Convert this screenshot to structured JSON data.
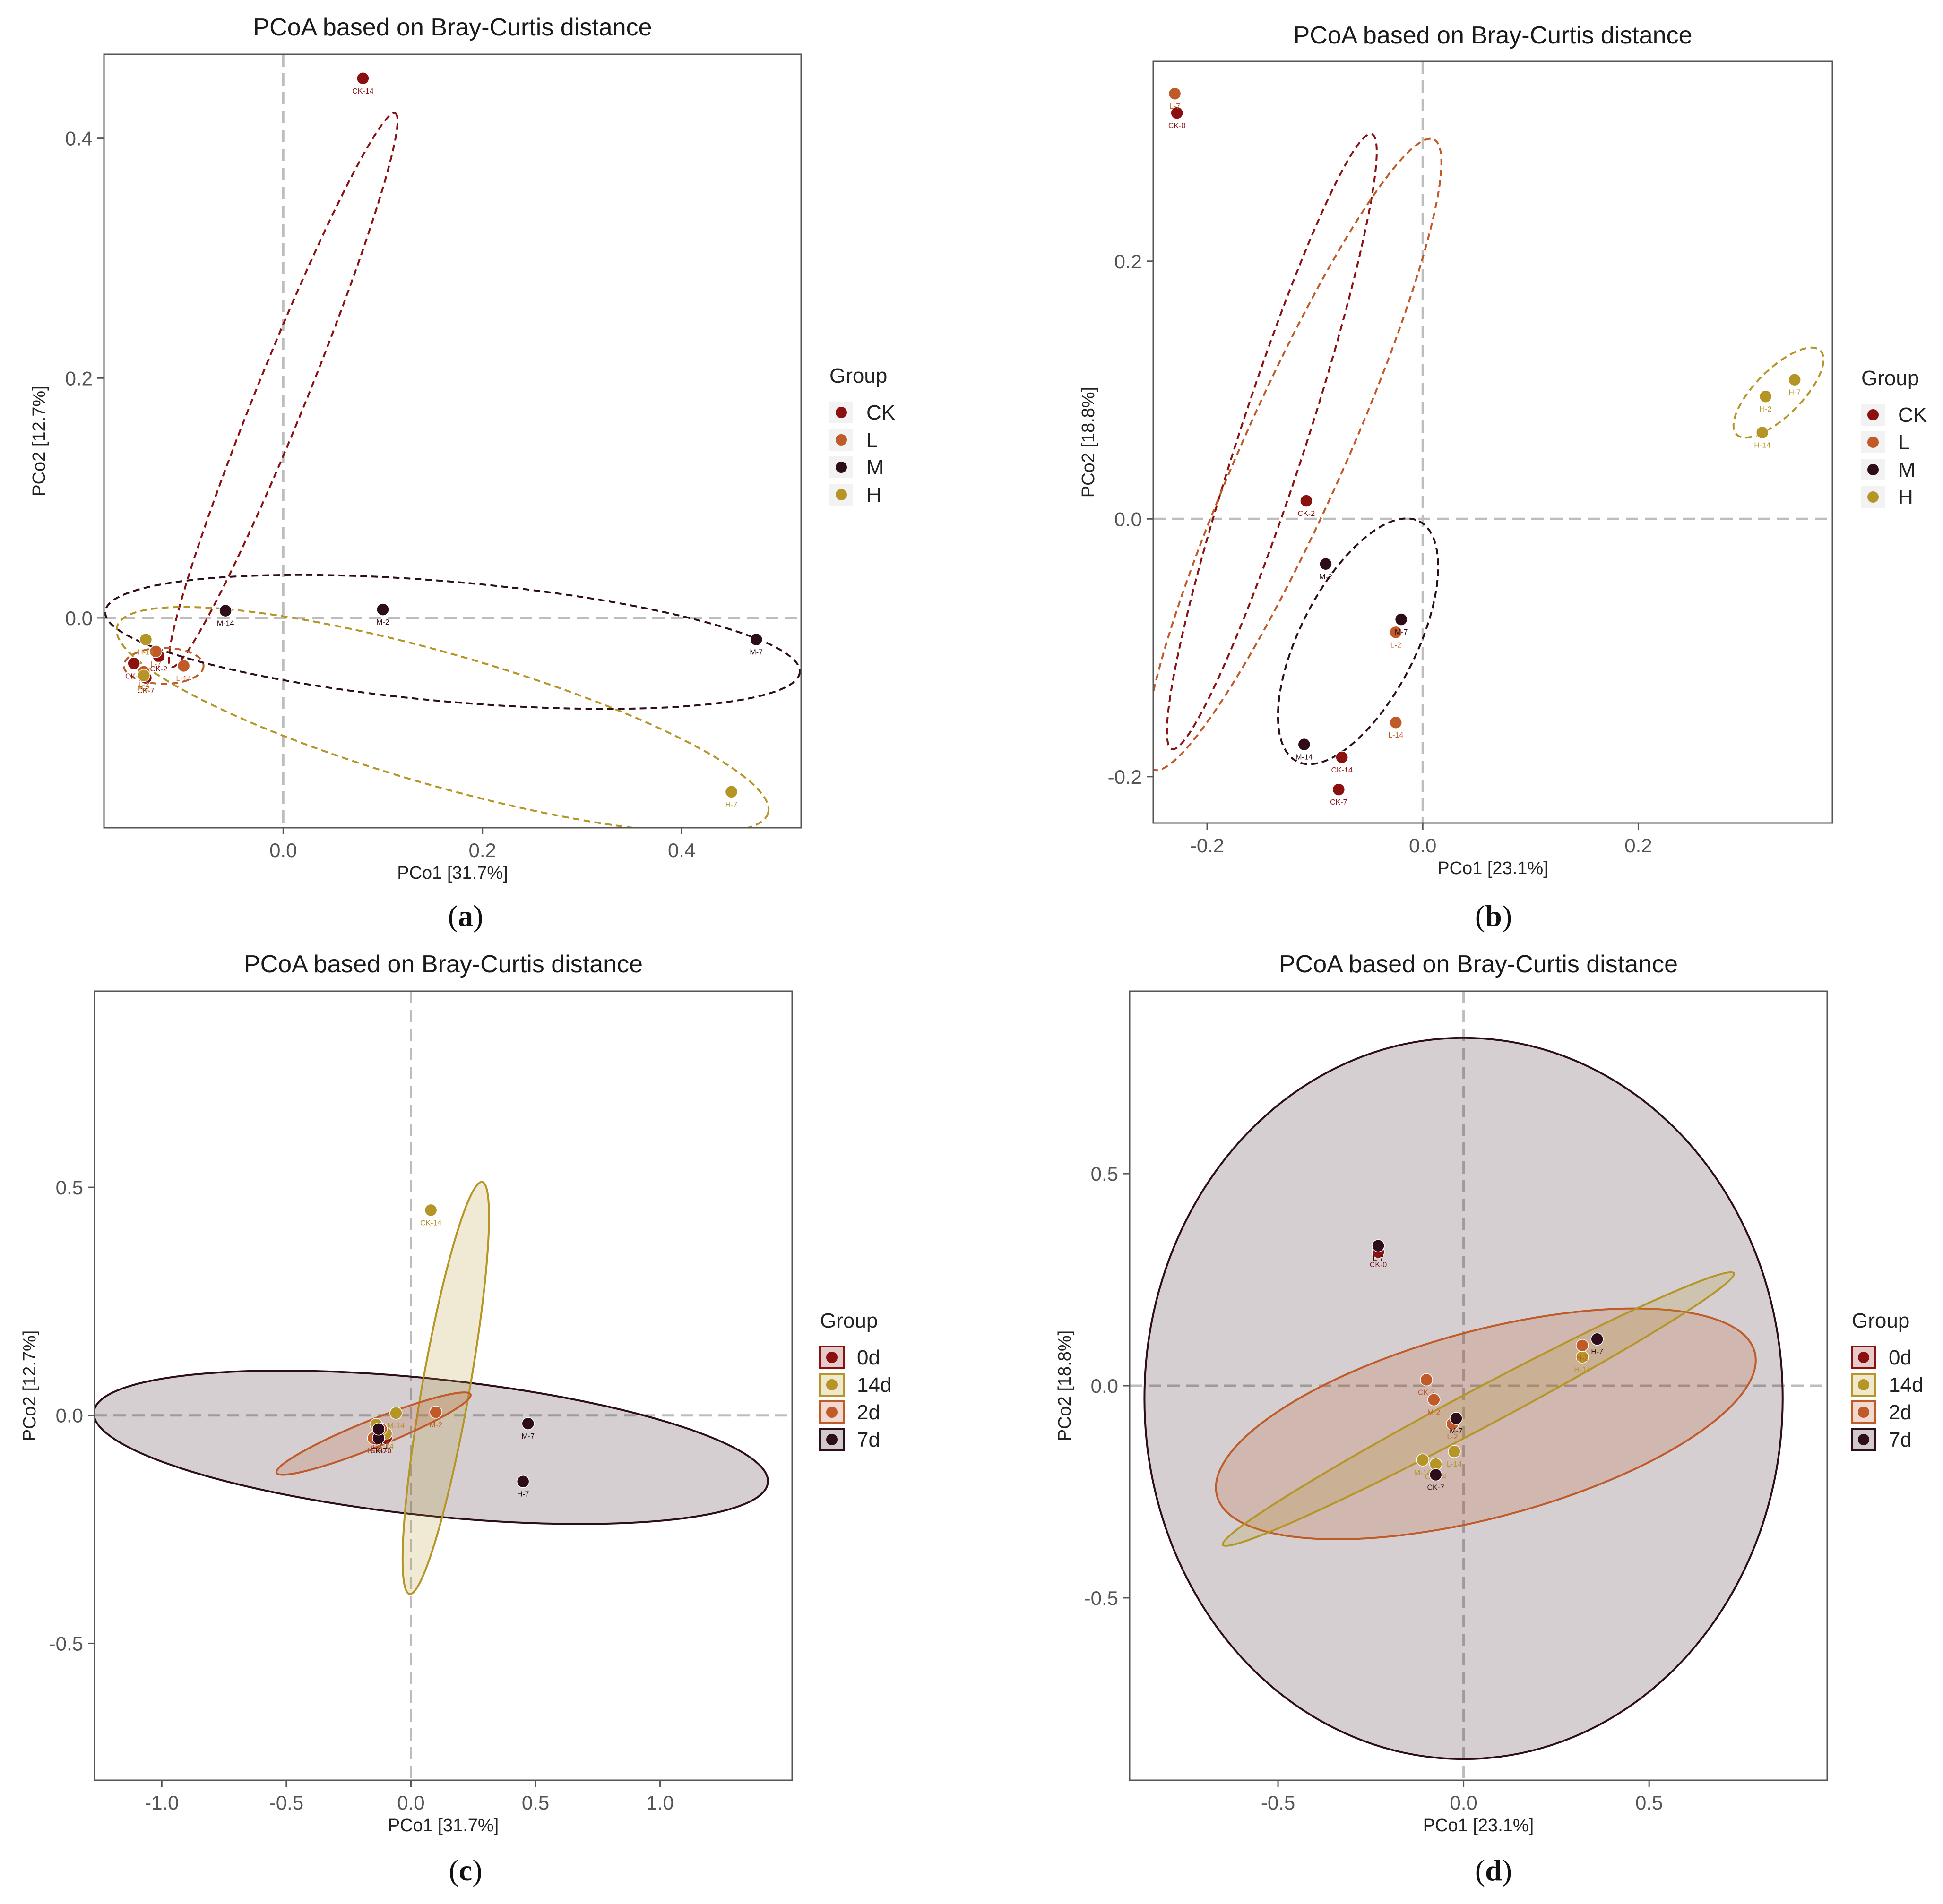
{
  "chart_data": [
    {
      "type": "scatter",
      "title": "PCoA based on Bray-Curtis distance",
      "xlabel": "PCo1 [31.7%]",
      "ylabel": "PCo2 [12.7%]",
      "caption": "a",
      "xlim": [
        -0.18,
        0.52
      ],
      "ylim": [
        -0.175,
        0.47
      ],
      "xticks": [
        0.0,
        0.2,
        0.4
      ],
      "xtick_labels": [
        "0.0",
        "0.2",
        "0.4"
      ],
      "yticks": [
        0.0,
        0.2,
        0.4
      ],
      "ytick_labels": [
        "0.0",
        "0.2",
        "0.4"
      ],
      "ref_lines": {
        "x": 0,
        "y": 0
      },
      "ellipse_style": "dashed",
      "legend": {
        "title": "Group",
        "position": "right",
        "style": "dot"
      },
      "series": [
        {
          "name": "CK",
          "color": "#8b1010",
          "ellipse": {
            "cx": 0.0,
            "cy": 0.19,
            "rx": 0.3,
            "ry": 0.021,
            "angle": 68
          },
          "points": [
            {
              "label": "CK-14",
              "x": 0.08,
              "y": 0.45
            },
            {
              "label": "CK-0",
              "x": -0.15,
              "y": -0.038
            },
            {
              "label": "CK-2",
              "x": -0.125,
              "y": -0.032
            },
            {
              "label": "CK-7",
              "x": -0.138,
              "y": -0.05
            }
          ]
        },
        {
          "name": "L",
          "color": "#c05a28",
          "ellipse": {
            "cx": -0.12,
            "cy": -0.04,
            "rx": 0.04,
            "ry": 0.015,
            "angle": 0
          },
          "points": [
            {
              "label": "L-7",
              "x": -0.128,
              "y": -0.028
            },
            {
              "label": "L-2",
              "x": -0.14,
              "y": -0.045
            },
            {
              "label": "L-14",
              "x": -0.1,
              "y": -0.04
            }
          ]
        },
        {
          "name": "M",
          "color": "#2e0d1a",
          "ellipse": {
            "cx": 0.17,
            "cy": -0.02,
            "rx": 0.35,
            "ry": 0.05,
            "angle": -5
          },
          "points": [
            {
              "label": "M-14",
              "x": -0.058,
              "y": 0.006
            },
            {
              "label": "M-2",
              "x": 0.1,
              "y": 0.007
            },
            {
              "label": "M-7",
              "x": 0.475,
              "y": -0.018
            }
          ]
        },
        {
          "name": "H",
          "color": "#b59526",
          "ellipse": {
            "cx": 0.16,
            "cy": -0.085,
            "rx": 0.34,
            "ry": 0.055,
            "angle": -16
          },
          "points": [
            {
              "label": "H-14",
              "x": -0.138,
              "y": -0.018
            },
            {
              "label": "H-2",
              "x": -0.14,
              "y": -0.048
            },
            {
              "label": "H-7",
              "x": 0.45,
              "y": -0.145
            }
          ]
        }
      ]
    },
    {
      "type": "scatter",
      "title": "PCoA based on Bray-Curtis distance",
      "xlabel": "PCo1 [23.1%]",
      "ylabel": "PCo2 [18.8%]",
      "caption": "b",
      "xlim": [
        -0.25,
        0.38
      ],
      "ylim": [
        -0.236,
        0.355
      ],
      "xticks": [
        -0.2,
        0.0,
        0.2
      ],
      "xtick_labels": [
        "-0.2",
        "0.0",
        "0.2"
      ],
      "yticks": [
        -0.2,
        0.0,
        0.2
      ],
      "ytick_labels": [
        "-0.2",
        "0.0",
        "0.2"
      ],
      "ref_lines": {
        "x": 0,
        "y": 0
      },
      "ellipse_style": "dashed",
      "legend": {
        "title": "Group",
        "position": "right",
        "style": "dot"
      },
      "series": [
        {
          "name": "CK",
          "color": "#8b1010",
          "ellipse": {
            "cx": -0.14,
            "cy": 0.06,
            "rx": 0.3,
            "ry": 0.026,
            "angle": 72
          },
          "points": [
            {
              "label": "CK-0",
              "x": -0.228,
              "y": 0.315
            },
            {
              "label": "CK-2",
              "x": -0.108,
              "y": 0.014
            },
            {
              "label": "CK-14",
              "x": -0.075,
              "y": -0.185
            },
            {
              "label": "CK-7",
              "x": -0.078,
              "y": -0.21
            }
          ]
        },
        {
          "name": "L",
          "color": "#c05a28",
          "ellipse": {
            "cx": -0.12,
            "cy": 0.05,
            "rx": 0.32,
            "ry": 0.04,
            "angle": 66
          },
          "points": [
            {
              "label": "L-7",
              "x": -0.23,
              "y": 0.33
            },
            {
              "label": "L-2",
              "x": -0.025,
              "y": -0.088
            },
            {
              "label": "L-14",
              "x": -0.025,
              "y": -0.158
            }
          ]
        },
        {
          "name": "M",
          "color": "#2e0d1a",
          "ellipse": {
            "cx": -0.06,
            "cy": -0.095,
            "rx": 0.125,
            "ry": 0.045,
            "angle": 63
          },
          "points": [
            {
              "label": "M-2",
              "x": -0.09,
              "y": -0.035
            },
            {
              "label": "M-7",
              "x": -0.02,
              "y": -0.078
            },
            {
              "label": "M-14",
              "x": -0.11,
              "y": -0.175
            }
          ]
        },
        {
          "name": "H",
          "color": "#b59526",
          "ellipse": {
            "cx": 0.33,
            "cy": 0.098,
            "rx": 0.055,
            "ry": 0.018,
            "angle": 45
          },
          "points": [
            {
              "label": "H-7",
              "x": 0.345,
              "y": 0.108
            },
            {
              "label": "H-2",
              "x": 0.318,
              "y": 0.095
            },
            {
              "label": "H-14",
              "x": 0.315,
              "y": 0.067
            }
          ]
        }
      ]
    },
    {
      "type": "scatter",
      "title": "PCoA based on Bray-Curtis distance",
      "xlabel": "PCo1 [31.7%]",
      "ylabel": "PCo2 [12.7%]",
      "caption": "c",
      "xlim": [
        -1.27,
        1.53
      ],
      "ylim": [
        -0.8,
        0.93
      ],
      "xticks": [
        -1.0,
        -0.5,
        0.0,
        0.5,
        1.0
      ],
      "xtick_labels": [
        "-1.0",
        "-0.5",
        "0.0",
        "0.5",
        "1.0"
      ],
      "yticks": [
        -0.5,
        0.0,
        0.5
      ],
      "ytick_labels": [
        "-0.5",
        "0.0",
        "0.5"
      ],
      "ref_lines": {
        "x": 0,
        "y": 0
      },
      "ellipse_style": "filled",
      "legend": {
        "title": "Group",
        "position": "right",
        "style": "box"
      },
      "series": [
        {
          "name": "0d",
          "color": "#8b1010",
          "ellipse": null,
          "points": [
            {
              "label": "CK-0",
              "x": -0.12,
              "y": -0.04
            },
            {
              "label": "L-0",
              "x": -0.1,
              "y": -0.05
            }
          ]
        },
        {
          "name": "14d",
          "color": "#b59526",
          "ellipse": {
            "cx": 0.14,
            "cy": 0.06,
            "rx": 0.84,
            "ry": 0.052,
            "angle": 80
          },
          "points": [
            {
              "label": "CK-14",
              "x": 0.08,
              "y": 0.45
            },
            {
              "label": "M-14",
              "x": -0.06,
              "y": 0.005
            },
            {
              "label": "L-14",
              "x": -0.1,
              "y": -0.04
            },
            {
              "label": "H-14",
              "x": -0.14,
              "y": -0.02
            }
          ]
        },
        {
          "name": "2d",
          "color": "#c05a28",
          "ellipse": {
            "cx": -0.15,
            "cy": -0.04,
            "rx": 0.42,
            "ry": 0.03,
            "angle": 22
          },
          "points": [
            {
              "label": "M-2",
              "x": 0.1,
              "y": 0.007
            },
            {
              "label": "CK-2",
              "x": -0.12,
              "y": -0.03
            },
            {
              "label": "L-2",
              "x": -0.14,
              "y": -0.045
            },
            {
              "label": "H-2",
              "x": -0.15,
              "y": -0.05
            }
          ]
        },
        {
          "name": "7d",
          "color": "#2e0d1a",
          "ellipse": {
            "cx": 0.08,
            "cy": -0.07,
            "rx": 1.36,
            "ry": 0.15,
            "angle": -6
          },
          "points": [
            {
              "label": "M-7",
              "x": 0.47,
              "y": -0.018
            },
            {
              "label": "H-7",
              "x": 0.45,
              "y": -0.145
            },
            {
              "label": "CK-7",
              "x": -0.13,
              "y": -0.05
            },
            {
              "label": "L-7",
              "x": -0.13,
              "y": -0.03
            }
          ]
        }
      ]
    },
    {
      "type": "scatter",
      "title": "PCoA based on Bray-Curtis distance",
      "xlabel": "PCo1 [23.1%]",
      "ylabel": "PCo2 [18.8%]",
      "caption": "d",
      "xlim": [
        -0.9,
        0.98
      ],
      "ylim": [
        -0.93,
        0.93
      ],
      "xticks": [
        -0.5,
        0.0,
        0.5
      ],
      "xtick_labels": [
        "-0.5",
        "0.0",
        "0.5"
      ],
      "yticks": [
        -0.5,
        0.0,
        0.5
      ],
      "ytick_labels": [
        "-0.5",
        "0.0",
        "0.5"
      ],
      "ref_lines": {
        "x": 0,
        "y": 0
      },
      "ellipse_style": "filled",
      "legend": {
        "title": "Group",
        "position": "right",
        "style": "box"
      },
      "series": [
        {
          "name": "0d",
          "color": "#8b1010",
          "ellipse": null,
          "points": [
            {
              "label": "CK-0",
              "x": -0.23,
              "y": 0.315
            }
          ]
        },
        {
          "name": "14d",
          "color": "#b59526",
          "ellipse": {
            "cx": 0.04,
            "cy": -0.055,
            "rx": 0.78,
            "ry": 0.045,
            "angle": 28
          },
          "points": [
            {
              "label": "H-14",
              "x": 0.32,
              "y": 0.068
            },
            {
              "label": "M-14",
              "x": -0.11,
              "y": -0.175
            },
            {
              "label": "L-14",
              "x": -0.025,
              "y": -0.155
            },
            {
              "label": "CK-14",
              "x": -0.075,
              "y": -0.185
            }
          ]
        },
        {
          "name": "2d",
          "color": "#c05a28",
          "ellipse": {
            "cx": 0.06,
            "cy": -0.09,
            "rx": 0.75,
            "ry": 0.22,
            "angle": 15
          },
          "points": [
            {
              "label": "CK-2",
              "x": -0.1,
              "y": 0.014
            },
            {
              "label": "M-2",
              "x": -0.08,
              "y": -0.033
            },
            {
              "label": "L-2",
              "x": -0.03,
              "y": -0.09
            },
            {
              "label": "H-2",
              "x": 0.32,
              "y": 0.095
            }
          ]
        },
        {
          "name": "7d",
          "color": "#2e0d1a",
          "ellipse": {
            "cx": 0.0,
            "cy": -0.03,
            "rx": 0.86,
            "ry": 0.85,
            "angle": 0
          },
          "points": [
            {
              "label": "L-7",
              "x": -0.23,
              "y": 0.33
            },
            {
              "label": "M-7",
              "x": -0.02,
              "y": -0.077
            },
            {
              "label": "H-7",
              "x": 0.36,
              "y": 0.11
            },
            {
              "label": "CK-7",
              "x": -0.075,
              "y": -0.21
            }
          ]
        }
      ]
    }
  ]
}
